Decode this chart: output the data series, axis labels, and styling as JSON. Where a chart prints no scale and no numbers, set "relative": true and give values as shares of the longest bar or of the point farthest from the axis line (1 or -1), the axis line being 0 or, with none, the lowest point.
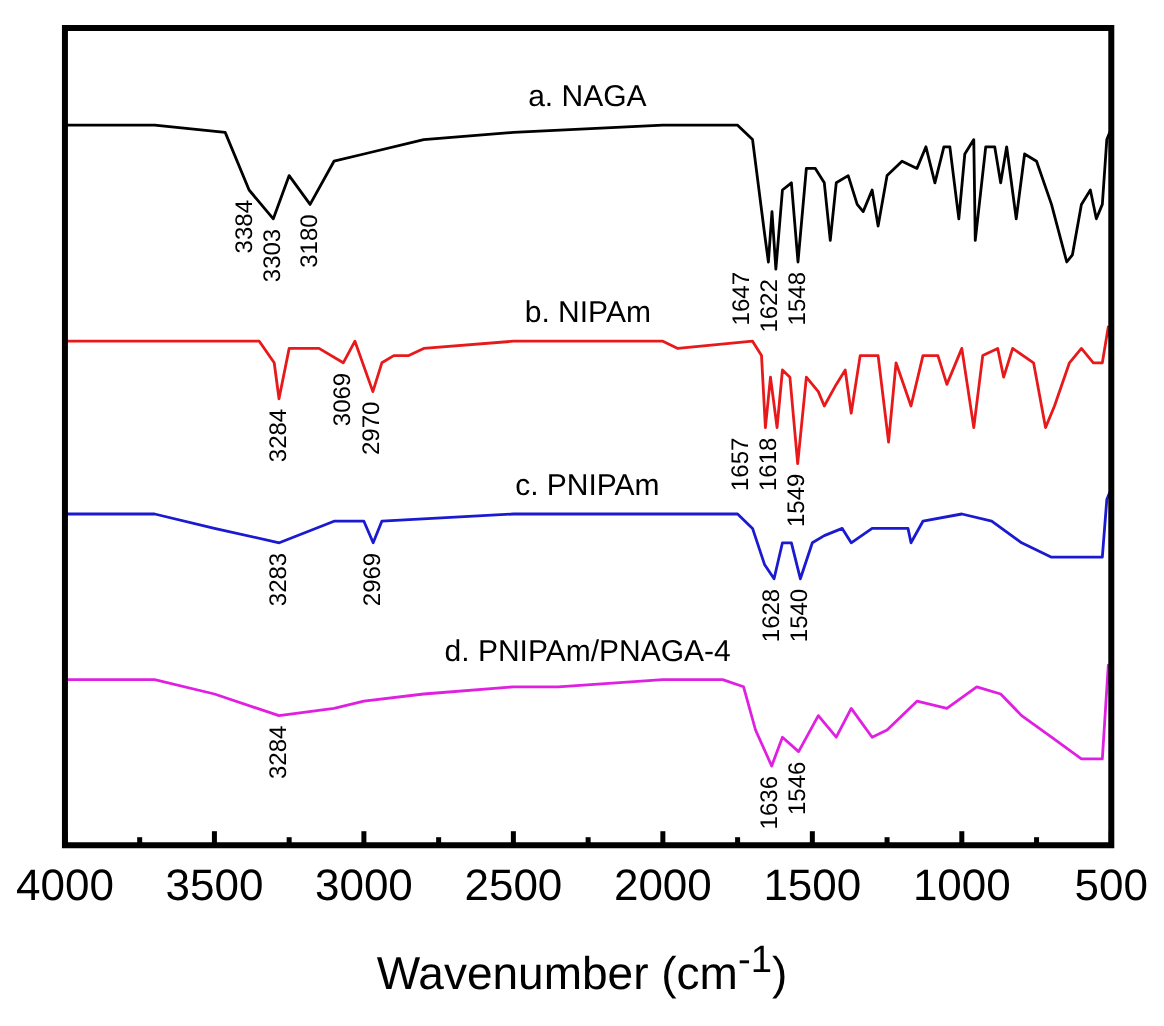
{
  "chart_data": {
    "type": "line",
    "relative": true,
    "xlabel": "Wavenumber (cm$^{-1}$)",
    "xlim": [
      4000,
      500
    ],
    "xticks": [
      4000,
      {
        "value": 3750,
        "label": null
      },
      3500,
      {
        "value": 3250,
        "label": null
      },
      3000,
      {
        "value": 2750,
        "label": null
      },
      2500,
      {
        "value": 2250,
        "label": null
      },
      2000,
      {
        "value": 1750,
        "label": null
      },
      1500,
      {
        "value": 1250,
        "label": null
      },
      1000,
      {
        "value": 750,
        "label": null
      },
      500
    ],
    "tick_labels": "x",
    "grid": false,
    "legend": false,
    "marker": "none",
    "line_style": "solid",
    "series": [
      {
        "name": "a. NAGA",
        "color": "#000000",
        "x": [
          4000,
          3700,
          3464,
          3384,
          3303,
          3250,
          3180,
          3100,
          3000,
          2800,
          2500,
          2000,
          1750,
          1700,
          1660,
          1647,
          1635,
          1622,
          1600,
          1570,
          1548,
          1520,
          1490,
          1460,
          1440,
          1420,
          1380,
          1350,
          1330,
          1300,
          1280,
          1250,
          1200,
          1150,
          1120,
          1090,
          1060,
          1040,
          1010,
          990,
          960,
          955,
          920,
          890,
          870,
          850,
          818,
          790,
          750,
          700,
          649,
          630,
          600,
          570,
          550,
          530,
          515,
          505
        ],
        "values": [
          1.0,
          1.0,
          0.99,
          0.91,
          0.87,
          0.93,
          0.89,
          0.95,
          0.96,
          0.98,
          0.99,
          1.0,
          1.0,
          0.98,
          0.85,
          0.81,
          0.88,
          0.8,
          0.91,
          0.92,
          0.81,
          0.94,
          0.94,
          0.92,
          0.84,
          0.92,
          0.93,
          0.89,
          0.88,
          0.91,
          0.86,
          0.93,
          0.95,
          0.94,
          0.97,
          0.92,
          0.97,
          0.97,
          0.87,
          0.96,
          0.98,
          0.84,
          0.97,
          0.97,
          0.92,
          0.97,
          0.87,
          0.96,
          0.95,
          0.89,
          0.81,
          0.82,
          0.89,
          0.91,
          0.87,
          0.89,
          0.98,
          0.99
        ]
      },
      {
        "name": "b. NIPAm",
        "color": "#e8191b",
        "x": [
          4000,
          3700,
          3350,
          3300,
          3284,
          3250,
          3150,
          3069,
          3030,
          2970,
          2940,
          2900,
          2850,
          2800,
          2500,
          2000,
          1950,
          1700,
          1670,
          1657,
          1640,
          1618,
          1600,
          1575,
          1549,
          1520,
          1480,
          1460,
          1420,
          1390,
          1370,
          1340,
          1280,
          1245,
          1220,
          1170,
          1130,
          1080,
          1050,
          1000,
          960,
          930,
          880,
          860,
          830,
          760,
          720,
          690,
          640,
          600,
          560,
          530,
          510,
          502
        ],
        "values": [
          0.7,
          0.7,
          0.7,
          0.67,
          0.62,
          0.69,
          0.69,
          0.67,
          0.7,
          0.63,
          0.67,
          0.68,
          0.68,
          0.69,
          0.7,
          0.7,
          0.69,
          0.7,
          0.68,
          0.58,
          0.65,
          0.58,
          0.66,
          0.65,
          0.53,
          0.65,
          0.63,
          0.61,
          0.64,
          0.66,
          0.6,
          0.68,
          0.68,
          0.56,
          0.67,
          0.61,
          0.68,
          0.68,
          0.64,
          0.69,
          0.58,
          0.68,
          0.69,
          0.65,
          0.69,
          0.67,
          0.58,
          0.61,
          0.67,
          0.69,
          0.67,
          0.67,
          0.72,
          0.7
        ]
      },
      {
        "name": "c. PNIPAm",
        "color": "#1a1ad0",
        "x": [
          4000,
          3700,
          3500,
          3283,
          3100,
          3000,
          2969,
          2940,
          2500,
          2000,
          1750,
          1700,
          1660,
          1628,
          1600,
          1570,
          1540,
          1500,
          1460,
          1400,
          1370,
          1300,
          1180,
          1170,
          1130,
          1000,
          900,
          800,
          700,
          600,
          530,
          515,
          505
        ],
        "values": [
          0.46,
          0.46,
          0.44,
          0.42,
          0.45,
          0.45,
          0.42,
          0.45,
          0.46,
          0.46,
          0.46,
          0.44,
          0.39,
          0.37,
          0.42,
          0.42,
          0.37,
          0.42,
          0.43,
          0.44,
          0.42,
          0.44,
          0.44,
          0.42,
          0.45,
          0.46,
          0.45,
          0.42,
          0.4,
          0.4,
          0.4,
          0.48,
          0.49
        ]
      },
      {
        "name": "d. PNIPAm/PNAGA-4",
        "color": "#e020e0",
        "x": [
          4000,
          3700,
          3500,
          3284,
          3100,
          3000,
          2800,
          2500,
          2350,
          2000,
          1800,
          1730,
          1690,
          1636,
          1600,
          1546,
          1480,
          1420,
          1370,
          1300,
          1250,
          1150,
          1050,
          950,
          870,
          800,
          700,
          600,
          550,
          530,
          510,
          503
        ],
        "values": [
          0.23,
          0.23,
          0.21,
          0.18,
          0.19,
          0.2,
          0.21,
          0.22,
          0.22,
          0.23,
          0.23,
          0.22,
          0.16,
          0.11,
          0.15,
          0.13,
          0.18,
          0.15,
          0.19,
          0.15,
          0.16,
          0.2,
          0.19,
          0.22,
          0.21,
          0.18,
          0.15,
          0.12,
          0.12,
          0.12,
          0.25,
          0.22
        ]
      }
    ],
    "annotations": [
      {
        "text": "3384",
        "x": 3384,
        "y": 0.91
      },
      {
        "text": "3303",
        "x": 3303,
        "y": 0.87
      },
      {
        "text": "3180",
        "x": 3180,
        "y": 0.89
      },
      {
        "text": "1647",
        "x": 1647,
        "y": 0.81
      },
      {
        "text": "1622",
        "x": 1622,
        "y": 0.8
      },
      {
        "text": "1548",
        "x": 1548,
        "y": 0.81
      },
      {
        "text": "3284",
        "x": 3284,
        "y": 0.62
      },
      {
        "text": "3069",
        "x": 3069,
        "y": 0.67
      },
      {
        "text": "2970",
        "x": 2970,
        "y": 0.63
      },
      {
        "text": "1657",
        "x": 1657,
        "y": 0.58
      },
      {
        "text": "1618",
        "x": 1618,
        "y": 0.58
      },
      {
        "text": "1549",
        "x": 1549,
        "y": 0.53
      },
      {
        "text": "3283",
        "x": 3283,
        "y": 0.42
      },
      {
        "text": "2969",
        "x": 2969,
        "y": 0.42
      },
      {
        "text": "1628",
        "x": 1628,
        "y": 0.37
      },
      {
        "text": "1540",
        "x": 1540,
        "y": 0.37
      },
      {
        "text": "3284",
        "x": 3284,
        "y": 0.18
      },
      {
        "text": "1636",
        "x": 1636,
        "y": 0.11
      },
      {
        "text": "1546",
        "x": 1546,
        "y": 0.13
      }
    ]
  }
}
